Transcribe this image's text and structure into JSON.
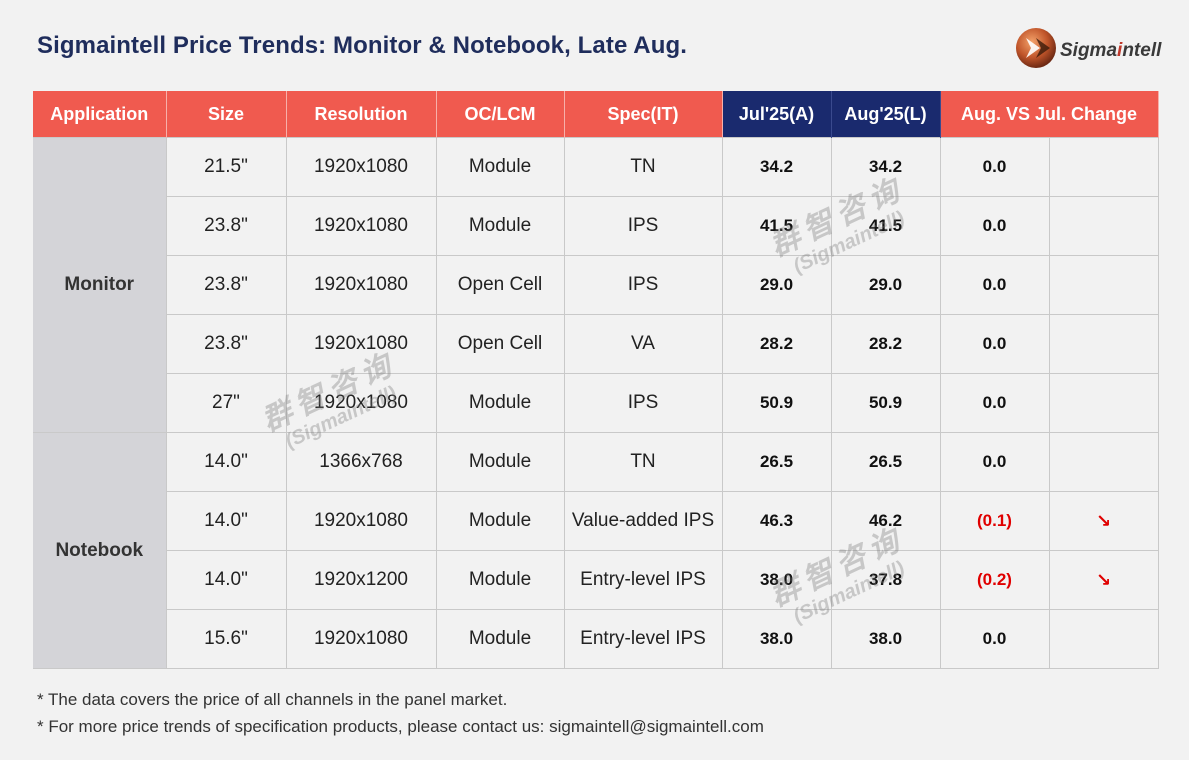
{
  "title": "Sigmaintell Price Trends: Monitor & Notebook, Late Aug.",
  "logo": {
    "text_main": "Sigma",
    "text_accent": "i",
    "text_tail": "ntell",
    "accent_color": "#c0392b"
  },
  "header": {
    "application": "Application",
    "size": "Size",
    "resolution": "Resolution",
    "oc_lcm": "OC/LCM",
    "spec": "Spec(IT)",
    "jul": "Jul'25(A)",
    "aug": "Aug'25(L)",
    "change": "Aug. VS Jul. Change"
  },
  "groups": [
    {
      "application": "Monitor",
      "rows": [
        {
          "size": "21.5\"",
          "resolution": "1920x1080",
          "oc_lcm": "Module",
          "spec": "TN",
          "jul": "34.2",
          "aug": "34.2",
          "change": "0.0",
          "arrow": ""
        },
        {
          "size": "23.8\"",
          "resolution": "1920x1080",
          "oc_lcm": "Module",
          "spec": "IPS",
          "jul": "41.5",
          "aug": "41.5",
          "change": "0.0",
          "arrow": ""
        },
        {
          "size": "23.8\"",
          "resolution": "1920x1080",
          "oc_lcm": "Open Cell",
          "spec": "IPS",
          "jul": "29.0",
          "aug": "29.0",
          "change": "0.0",
          "arrow": ""
        },
        {
          "size": "23.8\"",
          "resolution": "1920x1080",
          "oc_lcm": "Open Cell",
          "spec": "VA",
          "jul": "28.2",
          "aug": "28.2",
          "change": "0.0",
          "arrow": ""
        },
        {
          "size": "27\"",
          "resolution": "1920x1080",
          "oc_lcm": "Module",
          "spec": "IPS",
          "jul": "50.9",
          "aug": "50.9",
          "change": "0.0",
          "arrow": ""
        }
      ]
    },
    {
      "application": "Notebook",
      "rows": [
        {
          "size": "14.0\"",
          "resolution": "1366x768",
          "oc_lcm": "Module",
          "spec": "TN",
          "jul": "26.5",
          "aug": "26.5",
          "change": "0.0",
          "arrow": ""
        },
        {
          "size": "14.0\"",
          "resolution": "1920x1080",
          "oc_lcm": "Module",
          "spec": "Value-added IPS",
          "jul": "46.3",
          "aug": "46.2",
          "change": "(0.1)",
          "arrow": "↘"
        },
        {
          "size": "14.0\"",
          "resolution": "1920x1200",
          "oc_lcm": "Module",
          "spec": "Entry-level IPS",
          "jul": "38.0",
          "aug": "37.8",
          "change": "(0.2)",
          "arrow": "↘"
        },
        {
          "size": "15.6\"",
          "resolution": "1920x1080",
          "oc_lcm": "Module",
          "spec": "Entry-level IPS",
          "jul": "38.0",
          "aug": "38.0",
          "change": "0.0",
          "arrow": ""
        }
      ]
    }
  ],
  "watermark": {
    "zh": "群智咨询",
    "en": "(Sigmaintell)"
  },
  "notes": [
    "* The data covers the price of all channels in the panel market.",
    "* For more price trends of specification products, please contact us: sigmaintell@sigmaintell.com"
  ],
  "colors": {
    "header_red": "#f05a4f",
    "header_navy": "#1a2a6e",
    "negative": "#e00000",
    "title": "#1f2d5c"
  }
}
